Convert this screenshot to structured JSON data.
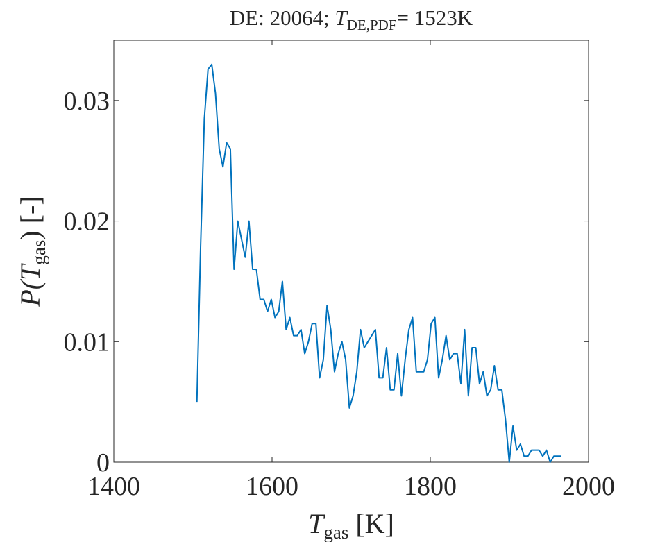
{
  "chart_data": {
    "type": "line",
    "title": {
      "prefix": "DE: 20064; ",
      "symbol": "T",
      "subscript": "DE,PDF",
      "suffix": "= 1523K"
    },
    "x_label": {
      "symbol": "T",
      "subscript": "gas",
      "unit": " [K]"
    },
    "y_label": {
      "prefix": "P(",
      "symbol": "T",
      "subscript": "gas",
      "suffix": ") [-]"
    },
    "x": [
      1505,
      1509.7,
      1514.4,
      1519.1,
      1523.8,
      1528.5,
      1533.2,
      1537.9,
      1542.6,
      1547.3,
      1552,
      1556.7,
      1561.4,
      1566.1,
      1570.8,
      1575.5,
      1580.2,
      1584.9,
      1589.6,
      1594.3,
      1599,
      1603.7,
      1608.4,
      1613.1,
      1617.8,
      1622.5,
      1627.2,
      1631.9,
      1636.6,
      1641.3,
      1646,
      1650.7,
      1655.4,
      1660.1,
      1664.8,
      1669.5,
      1674.2,
      1678.9,
      1683.6,
      1688.3,
      1693,
      1697.7,
      1702.4,
      1707.1,
      1711.8,
      1716.5,
      1721.2,
      1725.9,
      1730.6,
      1735.3,
      1740,
      1744.7,
      1749.4,
      1754.1,
      1758.8,
      1763.5,
      1768.2,
      1772.9,
      1777.6,
      1782.3,
      1787,
      1791.7,
      1796.4,
      1801.1,
      1805.8,
      1810.5,
      1815.2,
      1819.9,
      1824.6,
      1829.3,
      1834,
      1838.7,
      1843.4,
      1848.1,
      1852.8,
      1857.5,
      1862.2,
      1866.9,
      1871.6,
      1876.3,
      1881,
      1885.7,
      1890.4,
      1895.1,
      1899.8,
      1904.5,
      1909.2,
      1913.9,
      1918.6,
      1923.3,
      1928,
      1932.7,
      1937.4,
      1942.1,
      1946.8,
      1951.5,
      1956.2,
      1960.9,
      1965.6
    ],
    "values": [
      0.005,
      0.0179,
      0.0285,
      0.0326,
      0.033,
      0.0306,
      0.026,
      0.0245,
      0.0265,
      0.026,
      0.016,
      0.02,
      0.0185,
      0.017,
      0.02,
      0.016,
      0.016,
      0.0135,
      0.0135,
      0.0125,
      0.0135,
      0.012,
      0.0125,
      0.015,
      0.011,
      0.012,
      0.0105,
      0.0105,
      0.011,
      0.009,
      0.01,
      0.0115,
      0.0115,
      0.007,
      0.0085,
      0.013,
      0.011,
      0.0075,
      0.009,
      0.01,
      0.0085,
      0.0045,
      0.0055,
      0.0075,
      0.011,
      0.0095,
      0.01,
      0.0105,
      0.011,
      0.007,
      0.007,
      0.0095,
      0.006,
      0.006,
      0.009,
      0.0055,
      0.0085,
      0.011,
      0.012,
      0.0075,
      0.0075,
      0.0075,
      0.0085,
      0.0115,
      0.012,
      0.007,
      0.0085,
      0.0105,
      0.0085,
      0.009,
      0.009,
      0.0065,
      0.011,
      0.0055,
      0.0095,
      0.0095,
      0.0065,
      0.0075,
      0.0055,
      0.006,
      0.008,
      0.006,
      0.006,
      0.0035,
      0,
      0.003,
      0.001,
      0.0015,
      0.0005,
      0.0005,
      0.001,
      0.001,
      0.001,
      0.0005,
      0.001,
      0,
      0.0005,
      0.0005,
      0.0005
    ],
    "color": "#0072bd",
    "xlim": [
      1400,
      2000
    ],
    "xticks": [
      1400,
      1600,
      1800,
      2000
    ],
    "ylim": [
      0,
      0.035
    ],
    "yticks": [
      0,
      0.01,
      0.02,
      0.03
    ],
    "grid": false
  }
}
